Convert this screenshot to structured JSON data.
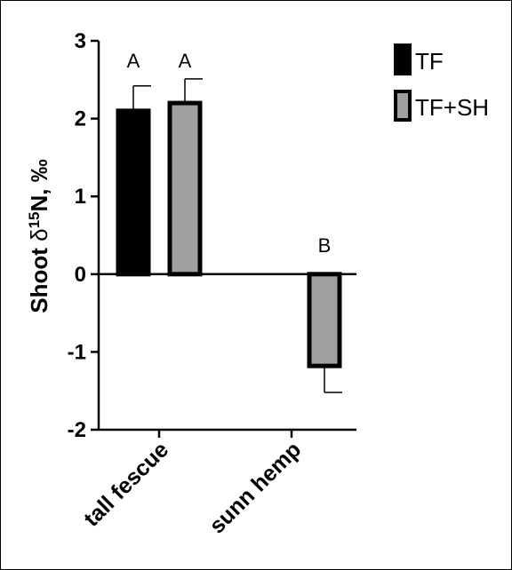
{
  "chart_data": {
    "type": "bar",
    "categories": [
      "tall fescue",
      "sunn hemp"
    ],
    "series": [
      {
        "name": "TF",
        "color": "#000000",
        "values": [
          2.1,
          null
        ],
        "errors": [
          0.32,
          null
        ],
        "labels": [
          "A",
          null
        ]
      },
      {
        "name": "TF+SH",
        "color": "#a0a0a0",
        "values": [
          2.2,
          -1.18
        ],
        "errors": [
          0.31,
          0.34
        ],
        "labels": [
          "A",
          "B"
        ]
      }
    ],
    "ylabel_prefix": "Shoot ",
    "ylabel_symbol": "δ",
    "ylabel_sup": "15",
    "ylabel_suffix": "N, ‰",
    "ylim": [
      -2,
      3
    ],
    "yticks": [
      "3",
      "2",
      "1",
      "0",
      "-1",
      "-2"
    ],
    "ytick_values": [
      3,
      2,
      1,
      0,
      -1,
      -2
    ],
    "grid": false,
    "legend_position": "top-right"
  }
}
